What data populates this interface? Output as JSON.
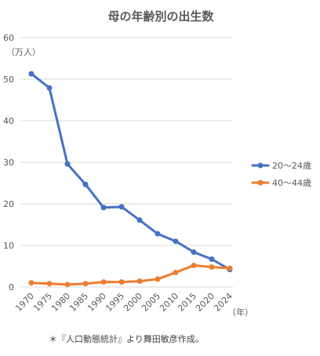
{
  "chart_data": {
    "type": "line",
    "title": "母の年齢別の出生数",
    "ylabel": "（万人）",
    "xlabel": "（年）",
    "y_ticks": [
      "0",
      "10",
      "20",
      "30",
      "40",
      "50",
      "60"
    ],
    "ylim": [
      0,
      60
    ],
    "grid": true,
    "legend_position": "right",
    "categories": [
      "1970",
      "1975",
      "1980",
      "1985",
      "1990",
      "1995",
      "2000",
      "2005",
      "2010",
      "2015",
      "2020",
      "2024"
    ],
    "series": [
      {
        "name": "20〜24歳",
        "color": "#4472C4",
        "values": [
          51.3,
          47.9,
          29.6,
          24.7,
          19.1,
          19.3,
          16.1,
          12.8,
          11.0,
          8.4,
          6.7,
          4.2
        ]
      },
      {
        "name": "40〜44歳",
        "color": "#ED7D31",
        "values": [
          1.0,
          0.8,
          0.6,
          0.8,
          1.2,
          1.2,
          1.4,
          1.9,
          3.5,
          5.2,
          4.8,
          4.5
        ]
      }
    ]
  },
  "source_note": "＊『人口動態統計』より舞田敏彦作成。"
}
